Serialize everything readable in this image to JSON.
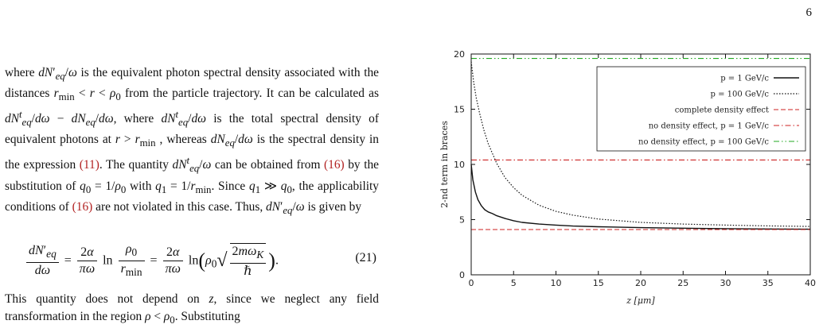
{
  "page": {
    "number": "6"
  },
  "text": {
    "para1_html": "where <i>dN</i>&prime;<sub><i>eq</i></sub>/<i>&omega;</i> is the equivalent photon spectral density associated with the distances <i>r</i><sub>min</sub> &lt; <i>r</i> &lt; <i>&rho;</i><sub>0</sub> from the particle trajectory. It can be calculated as <i>dN</i><sup><i>t</i></sup><sub><i>eq</i></sub>/<i>d&omega;</i> &minus; <i>dN</i><sub><i>eq</i></sub>/<i>d&omega;</i>, where <i>dN</i><sup><i>t</i></sup><sub><i>eq</i></sub>/<i>d&omega;</i> is the total spectral density of equivalent photons at <i>r</i> &gt; <i>r</i><sub>min</sub> , whereas <i>dN</i><sub><i>eq</i></sub>/<i>d&omega;</i> is the spectral density in the expression <span class=\"eq-ref\">(11)</span>. The quantity <i>dN</i><sup><i>t</i></sup><sub><i>eq</i></sub>/<i>&omega;</i> can be obtained from <span class=\"eq-ref\">(16)</span> by the substitution of <i>q</i><sub>0</sub> = 1/<i>&rho;</i><sub>0</sub> with <i>q</i><sub>1</sub> = 1/<i>r</i><sub>min</sub>. Since <i>q</i><sub>1</sub> &#8811; <i>q</i><sub>0</sub>, the applicability conditions of <span class=\"eq-ref\">(16)</span> are not violated in this case. Thus, <i>dN</i>&prime;<sub><i>eq</i></sub>/<i>&omega;</i> is given by",
    "equation_number": "(21)",
    "para2_html": "This quantity does not depend on <i>z</i>, since we neglect any field transformation in the region <i>&rho;</i> &lt; <i>&rho;</i><sub>0</sub>. Substituting"
  },
  "figure": {
    "chart_data": {
      "type": "line",
      "title": "",
      "xlabel": "z [μm]",
      "ylabel": "2-nd term in braces",
      "xlim": [
        0,
        40
      ],
      "ylim": [
        0,
        20
      ],
      "xticks": [
        0,
        5,
        10,
        15,
        20,
        25,
        30,
        35,
        40
      ],
      "yticks": [
        0,
        5,
        10,
        15,
        20
      ],
      "grid": false,
      "legend_position": "top-right",
      "series": [
        {
          "name": "p = 1 GeV/c",
          "color": "#111111",
          "dash": "solid",
          "x": [
            0,
            0.2,
            0.5,
            0.8,
            1.2,
            1.6,
            2,
            2.5,
            3,
            4,
            5,
            6,
            8,
            10,
            12,
            15,
            20,
            25,
            30,
            35,
            40
          ],
          "y": [
            10,
            8.6,
            7.5,
            6.8,
            6.25,
            5.9,
            5.7,
            5.55,
            5.35,
            5.1,
            4.9,
            4.75,
            4.6,
            4.5,
            4.42,
            4.35,
            4.27,
            4.22,
            4.18,
            4.15,
            4.13
          ]
        },
        {
          "name": "p = 100 GeV/c",
          "color": "#111111",
          "dash": "dotted",
          "x": [
            0,
            0.3,
            0.6,
            1,
            1.5,
            2,
            3,
            4,
            5,
            6,
            8,
            10,
            12,
            15,
            20,
            25,
            30,
            35,
            40
          ],
          "y": [
            19.3,
            17.4,
            16,
            14.6,
            13.1,
            11.9,
            10.1,
            8.8,
            7.9,
            7.2,
            6.3,
            5.75,
            5.4,
            5.05,
            4.75,
            4.6,
            4.5,
            4.43,
            4.38
          ]
        },
        {
          "name": "complete density effect",
          "color": "#cc2222",
          "dash": "dashed",
          "x": [
            0,
            40
          ],
          "y": [
            4.1,
            4.1
          ]
        },
        {
          "name": "no density effect, p = 1 GeV/c",
          "color": "#cc2222",
          "dash": "dashdot",
          "x": [
            0,
            40
          ],
          "y": [
            10.4,
            10.4
          ]
        },
        {
          "name": "no density effect, p = 100 GeV/c",
          "color": "#22aa22",
          "dash": "dashdotdot",
          "x": [
            0,
            40
          ],
          "y": [
            19.6,
            19.6
          ]
        }
      ]
    }
  }
}
